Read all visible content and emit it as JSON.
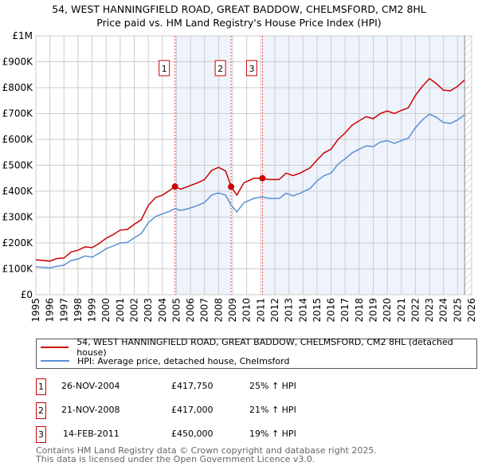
{
  "chart_data": {
    "type": "line",
    "title": "54, WEST HANNINGFIELD ROAD, GREAT BADDOW, CHELMSFORD, CM2 8HL",
    "subtitle": "Price paid vs. HM Land Registry's House Price Index (HPI)",
    "xlim": [
      1995,
      2026
    ],
    "ylim": [
      0,
      1000000
    ],
    "y_ticks": [
      {
        "v": 0,
        "label": "£0"
      },
      {
        "v": 100000,
        "label": "£100K"
      },
      {
        "v": 200000,
        "label": "£200K"
      },
      {
        "v": 300000,
        "label": "£300K"
      },
      {
        "v": 400000,
        "label": "£400K"
      },
      {
        "v": 500000,
        "label": "£500K"
      },
      {
        "v": 600000,
        "label": "£600K"
      },
      {
        "v": 700000,
        "label": "£700K"
      },
      {
        "v": 800000,
        "label": "£800K"
      },
      {
        "v": 900000,
        "label": "£900K"
      },
      {
        "v": 1000000,
        "label": "£1M"
      }
    ],
    "x_ticks": [
      "1995",
      "1996",
      "1997",
      "1998",
      "1999",
      "2000",
      "2001",
      "2002",
      "2003",
      "2004",
      "2005",
      "2006",
      "2007",
      "2008",
      "2009",
      "2010",
      "2011",
      "2012",
      "2013",
      "2014",
      "2015",
      "2016",
      "2017",
      "2018",
      "2019",
      "2020",
      "2021",
      "2022",
      "2023",
      "2024",
      "2025",
      "2026"
    ],
    "grid": true,
    "series": [
      {
        "name": "54, WEST HANNINGFIELD ROAD, GREAT BADDOW, CHELMSFORD, CM2 8HL (detached house)",
        "color": "#cc0000",
        "x": [
          1995,
          1996,
          1996.5,
          1997,
          1997.5,
          1998,
          1998.5,
          1999,
          1999.5,
          2000,
          2000.5,
          2001,
          2001.5,
          2002,
          2002.5,
          2003,
          2003.5,
          2004,
          2004.5,
          2004.9,
          2005.3,
          2005.8,
          2006.5,
          2007,
          2007.5,
          2008,
          2008.5,
          2008.9,
          2009.3,
          2009.8,
          2010.5,
          2011.1,
          2011.6,
          2012.3,
          2012.8,
          2013.3,
          2013.8,
          2014.5,
          2015,
          2015.5,
          2016,
          2016.5,
          2017,
          2017.5,
          2018,
          2018.5,
          2019,
          2019.5,
          2020,
          2020.5,
          2021,
          2021.5,
          2022,
          2022.5,
          2023,
          2023.5,
          2024,
          2024.5,
          2025,
          2025.5
        ],
        "y": [
          135000,
          130000,
          140000,
          142000,
          165000,
          172000,
          185000,
          182000,
          198000,
          218000,
          232000,
          250000,
          252000,
          272000,
          290000,
          345000,
          375000,
          385000,
          402000,
          417750,
          408000,
          418000,
          432000,
          445000,
          480000,
          492000,
          478000,
          417000,
          385000,
          432000,
          450000,
          450000,
          445000,
          445000,
          470000,
          460000,
          470000,
          490000,
          520000,
          548000,
          562000,
          600000,
          625000,
          655000,
          672000,
          688000,
          680000,
          700000,
          710000,
          700000,
          712000,
          722000,
          770000,
          805000,
          835000,
          815000,
          790000,
          788000,
          805000,
          830000
        ]
      },
      {
        "name": "HPI: Average price, detached house, Chelmsford",
        "color": "#5b8fd4",
        "x": [
          1995,
          1996,
          1996.5,
          1997,
          1997.5,
          1998,
          1998.5,
          1999,
          1999.5,
          2000,
          2000.5,
          2001,
          2001.5,
          2002,
          2002.5,
          2003,
          2003.5,
          2004,
          2004.5,
          2004.9,
          2005.3,
          2005.8,
          2006.5,
          2007,
          2007.5,
          2008,
          2008.5,
          2008.9,
          2009.3,
          2009.8,
          2010.5,
          2011.1,
          2011.6,
          2012.3,
          2012.8,
          2013.3,
          2013.8,
          2014.5,
          2015,
          2015.5,
          2016,
          2016.5,
          2017,
          2017.5,
          2018,
          2018.5,
          2019,
          2019.5,
          2020,
          2020.5,
          2021,
          2021.5,
          2022,
          2022.5,
          2023,
          2023.5,
          2024,
          2024.5,
          2025,
          2025.5
        ],
        "y": [
          108000,
          104000,
          110000,
          114000,
          132000,
          138000,
          150000,
          145000,
          160000,
          178000,
          188000,
          200000,
          202000,
          220000,
          236000,
          278000,
          302000,
          312000,
          322000,
          333000,
          326000,
          332000,
          345000,
          356000,
          385000,
          393000,
          385000,
          345000,
          320000,
          355000,
          372000,
          378000,
          372000,
          372000,
          392000,
          382000,
          392000,
          410000,
          440000,
          460000,
          470000,
          505000,
          525000,
          548000,
          562000,
          575000,
          572000,
          590000,
          595000,
          585000,
          595000,
          605000,
          645000,
          675000,
          698000,
          685000,
          665000,
          662000,
          675000,
          695000
        ]
      }
    ],
    "annotations": [
      {
        "label": "1",
        "x": 2004.9,
        "price": 417750
      },
      {
        "label": "2",
        "x": 2008.89,
        "price": 417000
      },
      {
        "label": "3",
        "x": 2011.12,
        "price": 450000
      }
    ],
    "shaded_ranges": [
      [
        2004.9,
        2008.89
      ],
      [
        2011.12,
        2025.5
      ]
    ],
    "forecast_hatch_from": 2025.5
  },
  "legend": {
    "property": "54, WEST HANNINGFIELD ROAD, GREAT BADDOW, CHELMSFORD, CM2 8HL (detached house)",
    "hpi": "HPI: Average price, detached house, Chelmsford"
  },
  "sales": [
    {
      "num": "1",
      "date": "26-NOV-2004",
      "price": "£417,750",
      "hpi": "25% ↑ HPI"
    },
    {
      "num": "2",
      "date": "21-NOV-2008",
      "price": "£417,000",
      "hpi": "21% ↑ HPI"
    },
    {
      "num": "3",
      "date": "14-FEB-2011",
      "price": "£450,000",
      "hpi": "19% ↑ HPI"
    }
  ],
  "footer": {
    "line1": "Contains HM Land Registry data © Crown copyright and database right 2025.",
    "line2": "This data is licensed under the Open Government Licence v3.0."
  }
}
